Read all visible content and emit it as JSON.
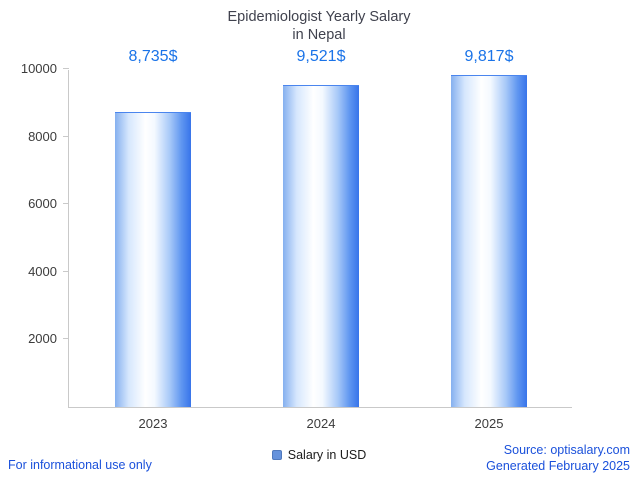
{
  "chart_data": {
    "type": "bar",
    "title": "Epidemiologist Yearly Salary in Nepal",
    "title_lines": [
      "Epidemiologist Yearly Salary",
      "in Nepal"
    ],
    "categories": [
      "2023",
      "2024",
      "2025"
    ],
    "values": [
      8735,
      9521,
      9817
    ],
    "data_labels": [
      "8,735$",
      "9,521$",
      "9,817$"
    ],
    "series_name": "Salary in USD",
    "xlabel": "",
    "ylabel": "",
    "ylim": [
      0,
      10000
    ],
    "yticks": [
      2000,
      4000,
      6000,
      8000,
      10000
    ],
    "grid": false,
    "legend_position": "bottom"
  },
  "legend": {
    "label": "Salary in USD",
    "swatch_color": "#6592dc"
  },
  "footer": {
    "disclaimer": "For informational use only",
    "source": "Source: optisalary.com",
    "generated": "Generated February 2025"
  },
  "colors": {
    "data_label": "#1a73e8",
    "footer_text": "#1b51db",
    "title_text": "#40424e",
    "bar_main": "#3874ea",
    "axis": "#c9c9c9"
  }
}
